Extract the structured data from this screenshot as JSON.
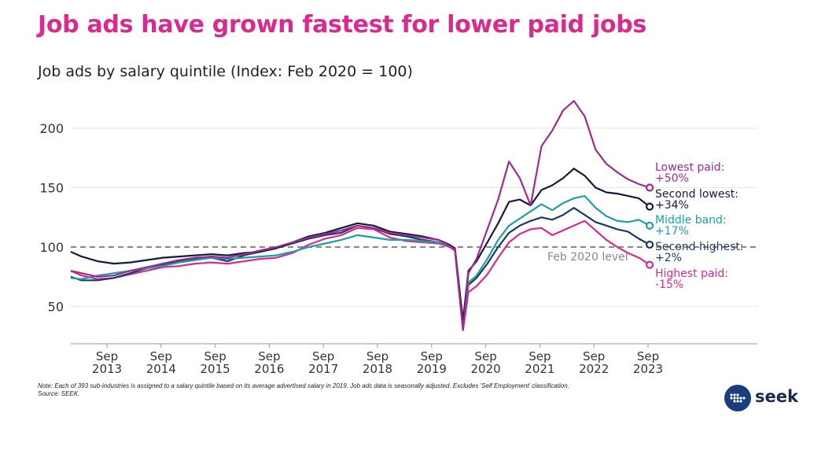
{
  "title": "Job ads have grown fastest for lower paid jobs",
  "subtitle": "Job ads by salary quintile (Index: Feb 2020 = 100)",
  "note": "Note: Each of 393 sub-industries is assigned to a salary quintile based on its average advertised salary in 2019. Job ads data is seasonally adjusted. Excludes 'Self Employment' classification.",
  "source": "Source: SEEK.",
  "logo_text": "seek",
  "chart_data": {
    "type": "line",
    "ylim": [
      25,
      230
    ],
    "y_ticks": [
      50,
      100,
      150,
      200
    ],
    "xlim": [
      2012.6,
      2025.4
    ],
    "x_ticks": [
      {
        "x": 2013.67,
        "top": "Sep",
        "bottom": "2013"
      },
      {
        "x": 2014.67,
        "top": "Sep",
        "bottom": "2014"
      },
      {
        "x": 2015.67,
        "top": "Sep",
        "bottom": "2015"
      },
      {
        "x": 2016.67,
        "top": "Sep",
        "bottom": "2016"
      },
      {
        "x": 2017.67,
        "top": "Sep",
        "bottom": "2017"
      },
      {
        "x": 2018.67,
        "top": "Sep",
        "bottom": "2018"
      },
      {
        "x": 2019.67,
        "top": "Sep",
        "bottom": "2019"
      },
      {
        "x": 2020.67,
        "top": "Sep",
        "bottom": "2020"
      },
      {
        "x": 2021.67,
        "top": "Sep",
        "bottom": "2021"
      },
      {
        "x": 2022.67,
        "top": "Sep",
        "bottom": "2022"
      },
      {
        "x": 2023.67,
        "top": "Sep",
        "bottom": "2023"
      }
    ],
    "reference_line": {
      "y": 100,
      "label": "Feb 2020 level",
      "color": "#888888"
    },
    "series": [
      {
        "name": "Highest paid",
        "label_lines": [
          "Highest paid:",
          "-15%"
        ],
        "color": "#d92a8f",
        "x": [
          2013.0,
          2013.2,
          2013.5,
          2013.8,
          2014.1,
          2014.4,
          2014.7,
          2015.0,
          2015.3,
          2015.6,
          2015.9,
          2016.2,
          2016.5,
          2016.8,
          2017.1,
          2017.4,
          2017.7,
          2018.0,
          2018.3,
          2018.6,
          2018.9,
          2019.2,
          2019.5,
          2019.8,
          2020.0,
          2020.1,
          2020.25,
          2020.35,
          2020.5,
          2020.7,
          2020.9,
          2021.1,
          2021.3,
          2021.5,
          2021.7,
          2021.9,
          2022.1,
          2022.3,
          2022.5,
          2022.7,
          2022.9,
          2023.1,
          2023.3,
          2023.5,
          2023.7
        ],
        "y": [
          80,
          76,
          73,
          74,
          77,
          80,
          83,
          84,
          86,
          87,
          86,
          88,
          90,
          91,
          95,
          102,
          107,
          110,
          116,
          115,
          108,
          105,
          104,
          103,
          100,
          97,
          30,
          62,
          67,
          77,
          91,
          104,
          111,
          115,
          116,
          110,
          114,
          118,
          122,
          114,
          106,
          100,
          95,
          91,
          85
        ]
      },
      {
        "name": "Second highest",
        "label_lines": [
          "Second highest:",
          "+2%"
        ],
        "color": "#1e3a5f",
        "x": [
          2013.0,
          2013.2,
          2013.5,
          2013.8,
          2014.1,
          2014.4,
          2014.7,
          2015.0,
          2015.3,
          2015.6,
          2015.9,
          2016.2,
          2016.5,
          2016.8,
          2017.1,
          2017.4,
          2017.7,
          2018.0,
          2018.3,
          2018.6,
          2018.9,
          2019.2,
          2019.5,
          2019.8,
          2020.0,
          2020.1,
          2020.25,
          2020.35,
          2020.5,
          2020.7,
          2020.9,
          2021.1,
          2021.3,
          2021.5,
          2021.7,
          2021.9,
          2022.1,
          2022.3,
          2022.5,
          2022.7,
          2022.9,
          2023.1,
          2023.3,
          2023.5,
          2023.7
        ],
        "y": [
          75,
          72,
          72,
          74,
          78,
          82,
          85,
          88,
          90,
          91,
          88,
          93,
          96,
          99,
          103,
          107,
          110,
          112,
          118,
          116,
          111,
          109,
          106,
          104,
          101,
          99,
          35,
          68,
          74,
          86,
          100,
          112,
          118,
          122,
          125,
          123,
          127,
          133,
          127,
          121,
          118,
          115,
          113,
          107,
          102
        ]
      },
      {
        "name": "Middle band",
        "label_lines": [
          "Middle band:",
          "+17%"
        ],
        "color": "#1aa0a8",
        "x": [
          2013.0,
          2013.2,
          2013.5,
          2013.8,
          2014.1,
          2014.4,
          2014.7,
          2015.0,
          2015.3,
          2015.6,
          2015.9,
          2016.2,
          2016.5,
          2016.8,
          2017.1,
          2017.4,
          2017.7,
          2018.0,
          2018.3,
          2018.6,
          2018.9,
          2019.2,
          2019.5,
          2019.8,
          2020.0,
          2020.1,
          2020.25,
          2020.35,
          2020.5,
          2020.7,
          2020.9,
          2021.1,
          2021.3,
          2021.5,
          2021.7,
          2021.9,
          2022.1,
          2022.3,
          2022.5,
          2022.7,
          2022.9,
          2023.1,
          2023.3,
          2023.5,
          2023.7
        ],
        "y": [
          74,
          73,
          76,
          78,
          80,
          82,
          84,
          87,
          89,
          91,
          90,
          91,
          92,
          93,
          96,
          100,
          103,
          106,
          110,
          108,
          106,
          106,
          105,
          104,
          101,
          99,
          33,
          70,
          76,
          90,
          106,
          118,
          124,
          130,
          136,
          131,
          137,
          141,
          143,
          133,
          126,
          122,
          121,
          123,
          118
        ]
      },
      {
        "name": "Second lowest",
        "label_lines": [
          "Second lowest:",
          "+34%"
        ],
        "color": "#141b3d",
        "x": [
          2013.0,
          2013.2,
          2013.5,
          2013.8,
          2014.1,
          2014.4,
          2014.7,
          2015.0,
          2015.3,
          2015.6,
          2015.9,
          2016.2,
          2016.5,
          2016.8,
          2017.1,
          2017.4,
          2017.7,
          2018.0,
          2018.3,
          2018.6,
          2018.9,
          2019.2,
          2019.5,
          2019.8,
          2020.0,
          2020.1,
          2020.25,
          2020.35,
          2020.5,
          2020.7,
          2020.9,
          2021.1,
          2021.3,
          2021.5,
          2021.7,
          2021.9,
          2022.1,
          2022.3,
          2022.5,
          2022.7,
          2022.9,
          2023.1,
          2023.3,
          2023.5,
          2023.7
        ],
        "y": [
          96,
          92,
          88,
          86,
          87,
          89,
          91,
          92,
          93,
          94,
          93,
          95,
          96,
          99,
          104,
          109,
          112,
          116,
          120,
          118,
          113,
          111,
          109,
          106,
          102,
          99,
          38,
          80,
          88,
          104,
          120,
          138,
          140,
          135,
          148,
          152,
          158,
          166,
          160,
          150,
          146,
          145,
          143,
          141,
          134
        ]
      },
      {
        "name": "Lowest paid",
        "label_lines": [
          "Lowest paid:",
          "+50%"
        ],
        "color": "#a02a8f",
        "x": [
          2013.0,
          2013.2,
          2013.5,
          2013.8,
          2014.1,
          2014.4,
          2014.7,
          2015.0,
          2015.3,
          2015.6,
          2015.9,
          2016.2,
          2016.5,
          2016.8,
          2017.1,
          2017.4,
          2017.7,
          2018.0,
          2018.3,
          2018.6,
          2018.9,
          2019.2,
          2019.5,
          2019.8,
          2020.0,
          2020.1,
          2020.25,
          2020.35,
          2020.5,
          2020.7,
          2020.9,
          2021.1,
          2021.3,
          2021.5,
          2021.7,
          2021.9,
          2022.1,
          2022.3,
          2022.5,
          2022.7,
          2022.9,
          2023.1,
          2023.3,
          2023.5,
          2023.7
        ],
        "y": [
          80,
          78,
          75,
          76,
          80,
          83,
          86,
          89,
          91,
          92,
          91,
          94,
          97,
          100,
          104,
          108,
          111,
          114,
          118,
          116,
          112,
          110,
          108,
          106,
          101,
          98,
          30,
          78,
          90,
          115,
          140,
          172,
          158,
          135,
          185,
          198,
          215,
          223,
          210,
          182,
          170,
          163,
          157,
          153,
          150
        ]
      }
    ]
  }
}
